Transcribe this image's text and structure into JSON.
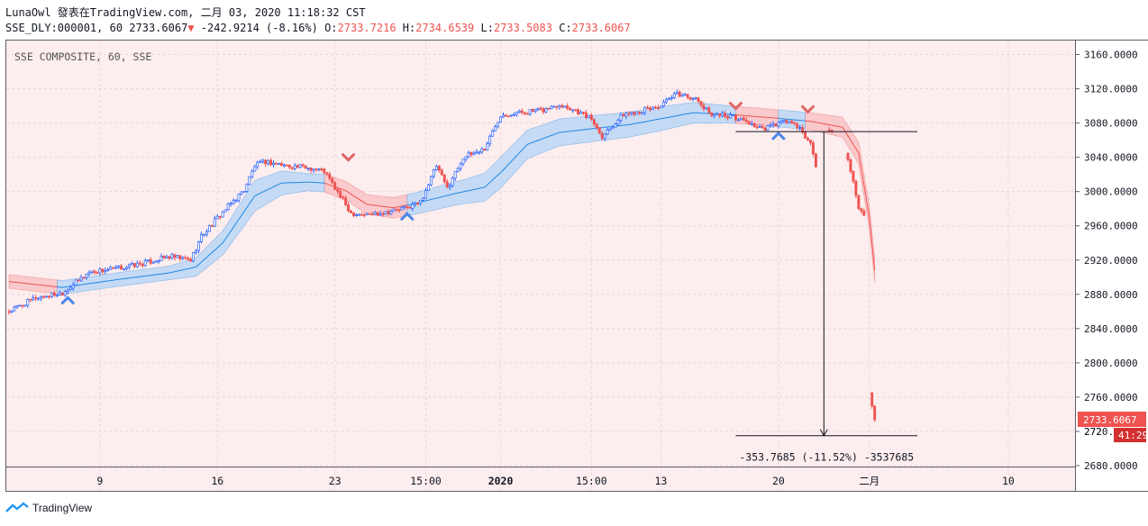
{
  "header": {
    "line1": "LunaOwl 發表在TradingView.com, 二月 03, 2020 11:18:32 CST",
    "symbol": "SSE_DLY:000001, 60",
    "price": "2733.6067",
    "change_arrow": "▼",
    "change": "-242.9214 (-8.16%)",
    "o_label": "O:",
    "o_value": "2733.7216",
    "h_label": "H:",
    "h_value": "2734.6539",
    "l_label": "L:",
    "l_value": "2733.5083",
    "c_label": "C:",
    "c_value": "2733.6067"
  },
  "footer": {
    "brand": "TradingView",
    "logo_icon": "tradingview-logo-icon"
  },
  "chart_data": {
    "type": "candlestick",
    "title": "SSE COMPOSITE, 60, SSE",
    "ylim": [
      2662,
      3180
    ],
    "y_ticks": [
      "3160.0000",
      "3120.0000",
      "3080.0000",
      "3040.0000",
      "3000.0000",
      "2960.0000",
      "2920.0000",
      "2880.0000",
      "2840.0000",
      "2800.0000",
      "2760.0000",
      "2720.0000",
      "2680.0000"
    ],
    "x_ticks": [
      {
        "label": "9",
        "idx": 34
      },
      {
        "label": "16",
        "idx": 78
      },
      {
        "label": "23",
        "idx": 122
      },
      {
        "label": "15:00",
        "idx": 156
      },
      {
        "label": "2020",
        "idx": 184
      },
      {
        "label": "15:00",
        "idx": 218
      },
      {
        "label": "13",
        "idx": 244
      },
      {
        "label": "20",
        "idx": 288
      },
      {
        "label": "二月",
        "idx": 322
      },
      {
        "label": "10",
        "idx": 374
      }
    ],
    "bar_count": 400,
    "last_price_label": "2733.6067",
    "countdown_label": "41:29",
    "partial_tick_label": "272",
    "measure": {
      "label": "-353.7685 (-11.52%) -3537685",
      "from_price": 3070,
      "to_price": 2715,
      "start_idx": 272,
      "end_idx": 340,
      "arrow_idx": 305
    },
    "signals": [
      {
        "type": "buy",
        "idx": 22,
        "price": 2874
      },
      {
        "type": "sell",
        "idx": 127,
        "price": 3040
      },
      {
        "type": "buy",
        "idx": 149,
        "price": 2972
      },
      {
        "type": "sell",
        "idx": 272,
        "price": 3100
      },
      {
        "type": "buy",
        "idx": 288,
        "price": 3066
      },
      {
        "type": "sell",
        "idx": 299,
        "price": 3096
      }
    ],
    "price_path": [
      [
        0,
        2860
      ],
      [
        10,
        2876
      ],
      [
        20,
        2882
      ],
      [
        30,
        2906
      ],
      [
        40,
        2910
      ],
      [
        50,
        2916
      ],
      [
        60,
        2924
      ],
      [
        68,
        2920
      ],
      [
        72,
        2948
      ],
      [
        80,
        2976
      ],
      [
        88,
        3002
      ],
      [
        92,
        3030
      ],
      [
        96,
        3035
      ],
      [
        104,
        3030
      ],
      [
        112,
        3028
      ],
      [
        118,
        3024
      ],
      [
        122,
        3004
      ],
      [
        128,
        2975
      ],
      [
        134,
        2973
      ],
      [
        140,
        2976
      ],
      [
        148,
        2980
      ],
      [
        154,
        2988
      ],
      [
        160,
        3030
      ],
      [
        164,
        3004
      ],
      [
        170,
        3040
      ],
      [
        178,
        3050
      ],
      [
        184,
        3090
      ],
      [
        190,
        3092
      ],
      [
        200,
        3095
      ],
      [
        206,
        3102
      ],
      [
        212,
        3095
      ],
      [
        218,
        3085
      ],
      [
        222,
        3065
      ],
      [
        230,
        3090
      ],
      [
        236,
        3094
      ],
      [
        244,
        3100
      ],
      [
        250,
        3114
      ],
      [
        256,
        3110
      ],
      [
        262,
        3092
      ],
      [
        270,
        3088
      ],
      [
        276,
        3082
      ],
      [
        282,
        3072
      ],
      [
        288,
        3080
      ],
      [
        292,
        3082
      ],
      [
        296,
        3072
      ],
      [
        300,
        3056
      ],
      [
        302,
        3030
      ],
      [
        304,
        3040
      ],
      [
        306,
        3072
      ],
      [
        308,
        3070
      ],
      [
        314,
        3040
      ],
      [
        318,
        2980
      ],
      [
        320,
        2970
      ],
      [
        322,
        2765
      ],
      [
        324,
        2733.6
      ]
    ],
    "candle_gaps": [
      [
        303,
        306
      ],
      [
        309,
        313
      ],
      [
        321,
        322
      ]
    ],
    "band_path": {
      "mid": [
        [
          0,
          2895
        ],
        [
          20,
          2888
        ],
        [
          40,
          2897
        ],
        [
          60,
          2905
        ],
        [
          70,
          2912
        ],
        [
          80,
          2940
        ],
        [
          92,
          2995
        ],
        [
          102,
          3010
        ],
        [
          112,
          3011
        ],
        [
          118,
          3010
        ],
        [
          126,
          3001
        ],
        [
          134,
          2985
        ],
        [
          144,
          2981
        ],
        [
          152,
          2986
        ],
        [
          166,
          2997
        ],
        [
          178,
          3005
        ],
        [
          184,
          3022
        ],
        [
          194,
          3055
        ],
        [
          206,
          3069
        ],
        [
          220,
          3074
        ],
        [
          232,
          3078
        ],
        [
          244,
          3085
        ],
        [
          256,
          3092
        ],
        [
          270,
          3090
        ],
        [
          286,
          3086
        ],
        [
          300,
          3082
        ],
        [
          312,
          3075
        ],
        [
          318,
          3045
        ],
        [
          322,
          2970
        ],
        [
          324,
          2908
        ]
      ],
      "widths": [
        [
          0,
          8
        ],
        [
          60,
          8
        ],
        [
          80,
          14
        ],
        [
          92,
          18
        ],
        [
          112,
          10
        ],
        [
          144,
          12
        ],
        [
          170,
          14
        ],
        [
          184,
          18
        ],
        [
          200,
          16
        ],
        [
          244,
          14
        ],
        [
          270,
          10
        ],
        [
          300,
          10
        ],
        [
          314,
          12
        ],
        [
          324,
          14
        ]
      ],
      "bull_segments": [
        [
          18,
          118
        ],
        [
          149,
          272
        ],
        [
          288,
          298
        ]
      ],
      "bear_segments": [
        [
          0,
          18
        ],
        [
          118,
          149
        ],
        [
          272,
          288
        ],
        [
          298,
          324
        ]
      ]
    }
  },
  "colors": {
    "up": "#2962ff",
    "down": "#ef5350",
    "bg": "#fcedee",
    "bull_fill": "#bbd6f5",
    "bear_fill": "#f8c2c6",
    "bull_line": "#1e88e5",
    "bear_line": "#ef5350",
    "buy_signal": "#4a86e8",
    "sell_signal": "#e06666",
    "axis_text": "#131722",
    "price_label_bg": "#ef5350",
    "countdown_bg": "#d32f2f"
  }
}
